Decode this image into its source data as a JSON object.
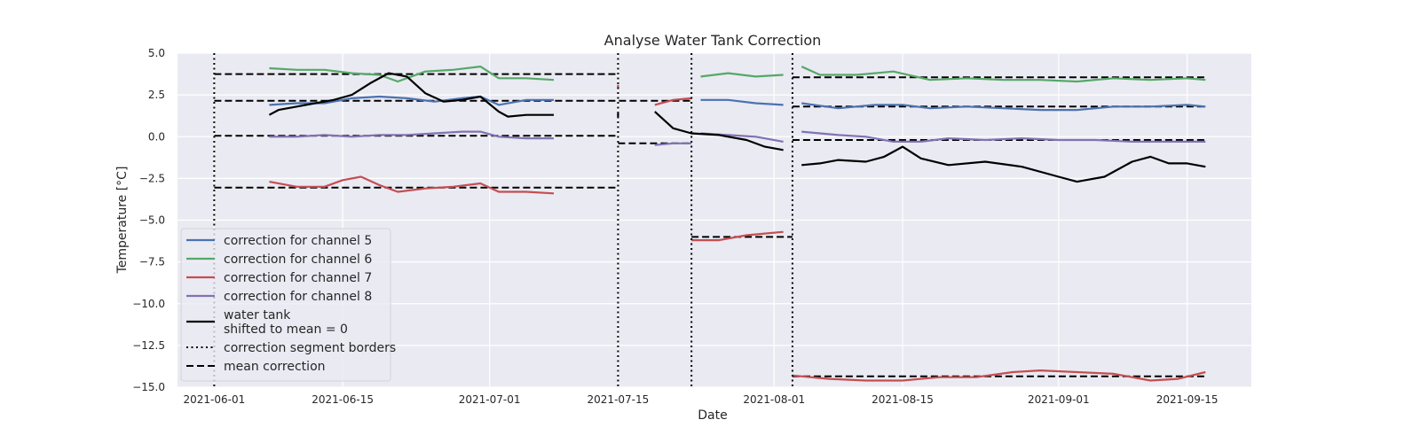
{
  "chart_data": {
    "type": "line",
    "title": "Analyse Water Tank Correction",
    "xlabel": "Date",
    "ylabel": "Temperature [°C]",
    "xlim": [
      "2021-05-28",
      "2021-09-22"
    ],
    "ylim": [
      -15.0,
      5.0
    ],
    "grid": true,
    "legend_position": "lower-left",
    "x_ticks": [
      "2021-06-01",
      "2021-06-15",
      "2021-07-01",
      "2021-07-15",
      "2021-08-01",
      "2021-08-15",
      "2021-09-01",
      "2021-09-15"
    ],
    "y_ticks": [
      5.0,
      2.5,
      0.0,
      -2.5,
      -5.0,
      -7.5,
      -10.0,
      -12.5,
      -15.0
    ],
    "y_tick_labels": [
      "5.0",
      "2.5",
      "0.0",
      "−2.5",
      "−5.0",
      "−7.5",
      "−10.0",
      "−12.5",
      "−15.0"
    ],
    "series": [
      {
        "name": "correction for channel 5",
        "color": "#4c72b0",
        "style": "solid",
        "segments": [
          {
            "points": [
              [
                "2021-06-07",
                1.9
              ],
              [
                "2021-06-10",
                2.0
              ],
              [
                "2021-06-13",
                2.0
              ],
              [
                "2021-06-16",
                2.3
              ],
              [
                "2021-06-19",
                2.4
              ],
              [
                "2021-06-22",
                2.3
              ],
              [
                "2021-06-25",
                2.1
              ],
              [
                "2021-06-28",
                2.3
              ],
              [
                "2021-06-30",
                2.4
              ],
              [
                "2021-07-02",
                1.9
              ],
              [
                "2021-07-05",
                2.2
              ],
              [
                "2021-07-08",
                2.2
              ]
            ]
          },
          {
            "points": [
              [
                "2021-07-24",
                2.2
              ],
              [
                "2021-07-27",
                2.2
              ],
              [
                "2021-07-30",
                2.0
              ],
              [
                "2021-08-02",
                1.9
              ]
            ]
          },
          {
            "points": [
              [
                "2021-08-04",
                2.0
              ],
              [
                "2021-08-08",
                1.7
              ],
              [
                "2021-08-12",
                1.9
              ],
              [
                "2021-08-15",
                1.9
              ],
              [
                "2021-08-18",
                1.7
              ],
              [
                "2021-08-22",
                1.8
              ],
              [
                "2021-08-26",
                1.7
              ],
              [
                "2021-08-30",
                1.6
              ],
              [
                "2021-09-03",
                1.6
              ],
              [
                "2021-09-07",
                1.8
              ],
              [
                "2021-09-11",
                1.8
              ],
              [
                "2021-09-15",
                1.9
              ],
              [
                "2021-09-17",
                1.8
              ]
            ]
          }
        ]
      },
      {
        "name": "correction for channel 6",
        "color": "#55a868",
        "style": "solid",
        "segments": [
          {
            "points": [
              [
                "2021-06-07",
                4.1
              ],
              [
                "2021-06-10",
                4.0
              ],
              [
                "2021-06-13",
                4.0
              ],
              [
                "2021-06-16",
                3.8
              ],
              [
                "2021-06-19",
                3.7
              ],
              [
                "2021-06-21",
                3.3
              ],
              [
                "2021-06-24",
                3.9
              ],
              [
                "2021-06-27",
                4.0
              ],
              [
                "2021-06-30",
                4.2
              ],
              [
                "2021-07-02",
                3.5
              ],
              [
                "2021-07-05",
                3.5
              ],
              [
                "2021-07-08",
                3.4
              ]
            ]
          },
          {
            "points": [
              [
                "2021-07-24",
                3.6
              ],
              [
                "2021-07-27",
                3.8
              ],
              [
                "2021-07-30",
                3.6
              ],
              [
                "2021-08-02",
                3.7
              ]
            ]
          },
          {
            "points": [
              [
                "2021-08-04",
                4.2
              ],
              [
                "2021-08-06",
                3.7
              ],
              [
                "2021-08-10",
                3.7
              ],
              [
                "2021-08-14",
                3.9
              ],
              [
                "2021-08-18",
                3.4
              ],
              [
                "2021-08-22",
                3.5
              ],
              [
                "2021-08-26",
                3.4
              ],
              [
                "2021-08-30",
                3.4
              ],
              [
                "2021-09-03",
                3.3
              ],
              [
                "2021-09-07",
                3.5
              ],
              [
                "2021-09-11",
                3.4
              ],
              [
                "2021-09-15",
                3.5
              ],
              [
                "2021-09-17",
                3.4
              ]
            ]
          }
        ]
      },
      {
        "name": "correction for channel 7",
        "color": "#c44e52",
        "style": "solid",
        "segments": [
          {
            "points": [
              [
                "2021-06-07",
                -2.7
              ],
              [
                "2021-06-10",
                -3.0
              ],
              [
                "2021-06-13",
                -3.0
              ],
              [
                "2021-06-15",
                -2.6
              ],
              [
                "2021-06-17",
                -2.4
              ],
              [
                "2021-06-19",
                -2.9
              ],
              [
                "2021-06-21",
                -3.3
              ],
              [
                "2021-06-24",
                -3.1
              ],
              [
                "2021-06-27",
                -3.0
              ],
              [
                "2021-06-30",
                -2.8
              ],
              [
                "2021-07-02",
                -3.3
              ],
              [
                "2021-07-05",
                -3.3
              ],
              [
                "2021-07-08",
                -3.4
              ]
            ]
          },
          {
            "points": [
              [
                "2021-07-15",
                3.1
              ],
              [
                "2021-07-15",
                2.9
              ]
            ]
          },
          {
            "points": [
              [
                "2021-07-19",
                1.9
              ],
              [
                "2021-07-21",
                2.2
              ],
              [
                "2021-07-23",
                2.3
              ]
            ]
          },
          {
            "points": [
              [
                "2021-07-23",
                -6.2
              ],
              [
                "2021-07-26",
                -6.2
              ],
              [
                "2021-07-29",
                -5.9
              ],
              [
                "2021-08-02",
                -5.7
              ]
            ]
          },
          {
            "points": [
              [
                "2021-08-03",
                -14.3
              ],
              [
                "2021-08-07",
                -14.5
              ],
              [
                "2021-08-11",
                -14.6
              ],
              [
                "2021-08-15",
                -14.6
              ],
              [
                "2021-08-19",
                -14.4
              ],
              [
                "2021-08-23",
                -14.4
              ],
              [
                "2021-08-27",
                -14.1
              ],
              [
                "2021-08-30",
                -14.0
              ],
              [
                "2021-09-03",
                -14.1
              ],
              [
                "2021-09-07",
                -14.2
              ],
              [
                "2021-09-11",
                -14.6
              ],
              [
                "2021-09-14",
                -14.5
              ],
              [
                "2021-09-17",
                -14.1
              ]
            ]
          }
        ]
      },
      {
        "name": "correction for channel 8",
        "color": "#8172b3",
        "style": "solid",
        "segments": [
          {
            "points": [
              [
                "2021-06-07",
                0.0
              ],
              [
                "2021-06-10",
                0.0
              ],
              [
                "2021-06-13",
                0.1
              ],
              [
                "2021-06-16",
                0.0
              ],
              [
                "2021-06-19",
                0.1
              ],
              [
                "2021-06-22",
                0.1
              ],
              [
                "2021-06-25",
                0.2
              ],
              [
                "2021-06-28",
                0.3
              ],
              [
                "2021-06-30",
                0.3
              ],
              [
                "2021-07-02",
                0.0
              ],
              [
                "2021-07-05",
                -0.1
              ],
              [
                "2021-07-08",
                -0.1
              ]
            ]
          },
          {
            "points": [
              [
                "2021-07-19",
                -0.5
              ],
              [
                "2021-07-21",
                -0.4
              ],
              [
                "2021-07-23",
                -0.4
              ]
            ]
          },
          {
            "points": [
              [
                "2021-07-24",
                0.2
              ],
              [
                "2021-07-27",
                0.1
              ],
              [
                "2021-07-30",
                0.0
              ],
              [
                "2021-08-02",
                -0.3
              ]
            ]
          },
          {
            "points": [
              [
                "2021-08-04",
                0.3
              ],
              [
                "2021-08-08",
                0.1
              ],
              [
                "2021-08-11",
                0.0
              ],
              [
                "2021-08-14",
                -0.3
              ],
              [
                "2021-08-17",
                -0.3
              ],
              [
                "2021-08-20",
                -0.1
              ],
              [
                "2021-08-24",
                -0.2
              ],
              [
                "2021-08-28",
                -0.1
              ],
              [
                "2021-09-01",
                -0.2
              ],
              [
                "2021-09-05",
                -0.2
              ],
              [
                "2021-09-09",
                -0.3
              ],
              [
                "2021-09-13",
                -0.3
              ],
              [
                "2021-09-17",
                -0.3
              ]
            ]
          }
        ]
      },
      {
        "name": "water tank\nshifted to mean = 0",
        "color": "#000000",
        "style": "solid",
        "segments": [
          {
            "points": [
              [
                "2021-06-07",
                1.3
              ],
              [
                "2021-06-08",
                1.6
              ],
              [
                "2021-06-10",
                1.8
              ],
              [
                "2021-06-12",
                2.0
              ],
              [
                "2021-06-14",
                2.2
              ],
              [
                "2021-06-16",
                2.5
              ],
              [
                "2021-06-18",
                3.2
              ],
              [
                "2021-06-20",
                3.8
              ],
              [
                "2021-06-22",
                3.6
              ],
              [
                "2021-06-24",
                2.6
              ],
              [
                "2021-06-26",
                2.1
              ],
              [
                "2021-06-28",
                2.2
              ],
              [
                "2021-06-30",
                2.4
              ],
              [
                "2021-07-02",
                1.5
              ],
              [
                "2021-07-03",
                1.2
              ],
              [
                "2021-07-05",
                1.3
              ],
              [
                "2021-07-08",
                1.3
              ]
            ]
          },
          {
            "points": [
              [
                "2021-07-15",
                1.4
              ],
              [
                "2021-07-15",
                1.2
              ]
            ]
          },
          {
            "points": [
              [
                "2021-07-19",
                1.5
              ],
              [
                "2021-07-21",
                0.5
              ],
              [
                "2021-07-23",
                0.2
              ],
              [
                "2021-07-26",
                0.1
              ],
              [
                "2021-07-29",
                -0.2
              ],
              [
                "2021-07-31",
                -0.6
              ],
              [
                "2021-08-02",
                -0.8
              ]
            ]
          },
          {
            "points": [
              [
                "2021-08-04",
                -1.7
              ],
              [
                "2021-08-06",
                -1.6
              ],
              [
                "2021-08-08",
                -1.4
              ],
              [
                "2021-08-11",
                -1.5
              ],
              [
                "2021-08-13",
                -1.2
              ],
              [
                "2021-08-15",
                -0.6
              ],
              [
                "2021-08-17",
                -1.3
              ],
              [
                "2021-08-20",
                -1.7
              ],
              [
                "2021-08-24",
                -1.5
              ],
              [
                "2021-08-28",
                -1.8
              ],
              [
                "2021-09-01",
                -2.4
              ],
              [
                "2021-09-03",
                -2.7
              ],
              [
                "2021-09-06",
                -2.4
              ],
              [
                "2021-09-09",
                -1.5
              ],
              [
                "2021-09-11",
                -1.2
              ],
              [
                "2021-09-13",
                -1.6
              ],
              [
                "2021-09-15",
                -1.6
              ],
              [
                "2021-09-17",
                -1.8
              ]
            ]
          }
        ]
      },
      {
        "name": "correction segment borders",
        "color": "#000000",
        "style": "dotted",
        "vlines": [
          "2021-06-01",
          "2021-07-15",
          "2021-07-23",
          "2021-08-03"
        ]
      },
      {
        "name": "mean correction",
        "color": "#000000",
        "style": "dashed",
        "segments": [
          {
            "points": [
              [
                "2021-06-01",
                3.75
              ],
              [
                "2021-07-15",
                3.75
              ]
            ]
          },
          {
            "points": [
              [
                "2021-06-01",
                2.15
              ],
              [
                "2021-07-23",
                2.15
              ]
            ]
          },
          {
            "points": [
              [
                "2021-06-01",
                0.05
              ],
              [
                "2021-07-15",
                0.05
              ]
            ]
          },
          {
            "points": [
              [
                "2021-06-01",
                -3.05
              ],
              [
                "2021-07-15",
                -3.05
              ]
            ]
          },
          {
            "points": [
              [
                "2021-07-15",
                -0.4
              ],
              [
                "2021-07-23",
                -0.4
              ]
            ]
          },
          {
            "points": [
              [
                "2021-07-23",
                -6.0
              ],
              [
                "2021-08-03",
                -6.0
              ]
            ]
          },
          {
            "points": [
              [
                "2021-08-03",
                3.55
              ],
              [
                "2021-09-17",
                3.55
              ]
            ]
          },
          {
            "points": [
              [
                "2021-08-03",
                1.8
              ],
              [
                "2021-09-17",
                1.8
              ]
            ]
          },
          {
            "points": [
              [
                "2021-08-03",
                -0.2
              ],
              [
                "2021-09-17",
                -0.2
              ]
            ]
          },
          {
            "points": [
              [
                "2021-08-03",
                -14.35
              ],
              [
                "2021-09-17",
                -14.35
              ]
            ]
          }
        ]
      }
    ]
  }
}
